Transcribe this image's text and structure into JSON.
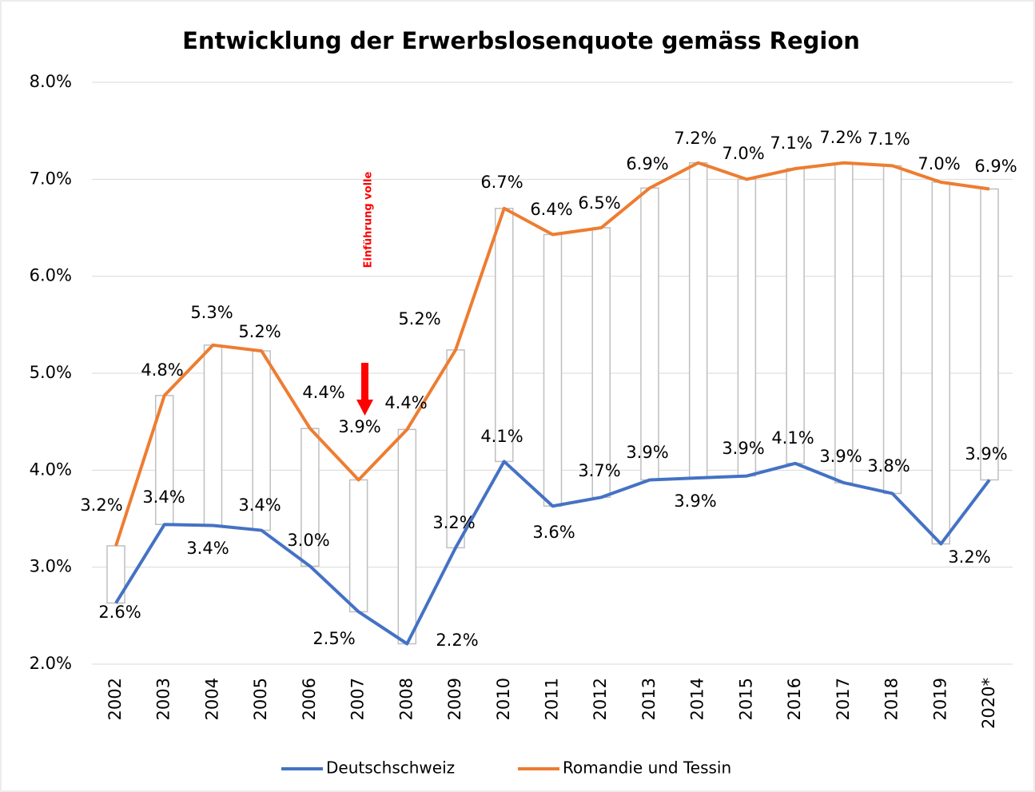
{
  "chart_data": {
    "type": "line",
    "title": "Entwicklung der Erwerbslosenquote gemäss Region",
    "annotation": "Einführung volle",
    "categories": [
      "2002",
      "2003",
      "2004",
      "2005",
      "2006",
      "2007",
      "2008",
      "2009",
      "2010",
      "2011",
      "2012",
      "2013",
      "2014",
      "2015",
      "2016",
      "2017",
      "2018",
      "2019",
      "2020*"
    ],
    "series": [
      {
        "name": "Deutschschweiz",
        "color": "#4472c4",
        "values": [
          2.63,
          3.44,
          3.43,
          3.38,
          3.01,
          2.54,
          2.21,
          3.2,
          4.09,
          3.63,
          3.72,
          3.9,
          3.92,
          3.94,
          4.07,
          3.87,
          3.76,
          3.24,
          3.9
        ],
        "value_labels": [
          "2.6%",
          "3.4%",
          "3.4%",
          "3.4%",
          "3.0%",
          "2.5%",
          "2.2%",
          "3.2%",
          "4.1%",
          "3.6%",
          "3.7%",
          "3.9%",
          "3.9%",
          "3.9%",
          "4.1%",
          "3.9%",
          "3.8%",
          "3.2%",
          "3.9%"
        ]
      },
      {
        "name": "Romandie und Tessin",
        "color": "#ed7d31",
        "values": [
          3.22,
          4.77,
          5.29,
          5.23,
          4.43,
          3.9,
          4.42,
          5.24,
          6.7,
          6.43,
          6.5,
          6.91,
          7.17,
          7.0,
          7.11,
          7.17,
          7.14,
          6.97,
          6.9
        ],
        "value_labels": [
          "3.2%",
          "4.8%",
          "5.3%",
          "5.2%",
          "4.4%",
          "3.9%",
          "4.4%",
          "5.2%",
          "6.7%",
          "6.4%",
          "6.5%",
          "6.9%",
          "7.2%",
          "7.0%",
          "7.1%",
          "7.2%",
          "7.1%",
          "7.0%",
          "6.9%"
        ]
      }
    ],
    "ylim": [
      2,
      8
    ],
    "yticks": [
      {
        "value": 2,
        "label": "2.0%"
      },
      {
        "value": 3,
        "label": "3.0%"
      },
      {
        "value": 4,
        "label": "4.0%"
      },
      {
        "value": 5,
        "label": "5.0%"
      },
      {
        "value": 6,
        "label": "6.0%"
      },
      {
        "value": 7,
        "label": "7.0%"
      },
      {
        "value": 8,
        "label": "8.0%"
      }
    ],
    "grid": true,
    "legend": "bottom"
  }
}
